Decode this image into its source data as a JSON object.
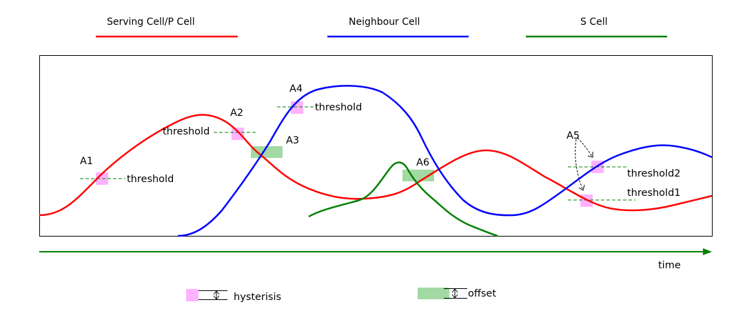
{
  "legend": {
    "serving": {
      "label": "Serving Cell/P Cell",
      "color": "#ff0000"
    },
    "neighbour": {
      "label": "Neighbour Cell",
      "color": "#0000ff"
    },
    "scell": {
      "label": "S Cell",
      "color": "#008000"
    }
  },
  "events": {
    "a1": {
      "label": "A1",
      "threshold": "threshold"
    },
    "a2": {
      "label": "A2",
      "threshold": "threshold"
    },
    "a3": {
      "label": "A3"
    },
    "a4": {
      "label": "A4",
      "threshold": "threshold"
    },
    "a5": {
      "label": "A5",
      "threshold1": "threshold1",
      "threshold2": "threshold2"
    },
    "a6": {
      "label": "A6"
    }
  },
  "axis": {
    "time_label": "time",
    "color": "#008000"
  },
  "key": {
    "hysteresis_label": "hysterisis",
    "hysteresis_color": "#ffb3ff",
    "offset_label": "offset",
    "offset_color": "#a3d9a3"
  },
  "colors": {
    "threshold_line": "#008000",
    "frame": "#000000"
  }
}
